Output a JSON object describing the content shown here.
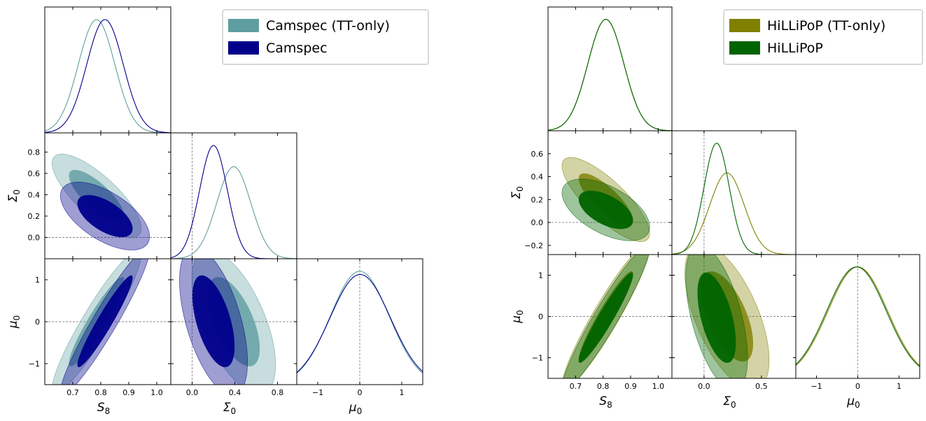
{
  "chart_data": [
    {
      "type": "contour",
      "params": [
        "S_8",
        "Σ_0",
        "μ_0"
      ],
      "axis_labels": {
        "S_8": "S",
        "S_8_sub": "8",
        "Sigma_0": "Σ",
        "Sigma_0_sub": "0",
        "mu_0": "μ",
        "mu_0_sub": "0"
      },
      "ranges": {
        "S_8": [
          0.6,
          1.05
        ],
        "Sigma_0": [
          -0.2,
          0.98
        ],
        "mu_0": [
          -1.5,
          1.5
        ]
      },
      "ticks": {
        "S_8": [
          "0.7",
          "0.8",
          "0.9",
          "1.0"
        ],
        "Sigma_0_x": [
          "0.0",
          "0.4",
          "0.8"
        ],
        "Sigma_0_y": [
          "0.0",
          "0.2",
          "0.4",
          "0.6",
          "0.8"
        ],
        "mu_0_x": [
          "−1",
          "0",
          "1"
        ],
        "mu_0_y": [
          "−1",
          "0",
          "1"
        ]
      },
      "reference_lines": {
        "Sigma_0": 0,
        "mu_0": 0
      },
      "legend": {
        "position": "top-right",
        "entries": [
          "Camspec (TT-only)",
          "Camspec"
        ]
      },
      "series": [
        {
          "name": "Camspec (TT-only)",
          "color": "#5f9ea0",
          "S_8": {
            "mean": 0.785,
            "sigma": 0.065
          },
          "Sigma_0": {
            "mean": 0.39,
            "sigma": 0.16
          },
          "mu_0": {
            "mean": 0.0,
            "sigma": 0.7
          },
          "corr": {
            "S8_Sigma0": -0.78,
            "S8_mu0": 0.93,
            "Sigma0_mu0": -0.6
          }
        },
        {
          "name": "Camspec",
          "color": "#00008b",
          "S_8": {
            "mean": 0.815,
            "sigma": 0.065
          },
          "Sigma_0": {
            "mean": 0.2,
            "sigma": 0.13
          },
          "mu_0": {
            "mean": 0.01,
            "sigma": 0.72
          },
          "corr": {
            "S8_Sigma0": -0.6,
            "S8_mu0": 0.95,
            "Sigma0_mu0": -0.55
          }
        }
      ]
    },
    {
      "type": "contour",
      "params": [
        "S_8",
        "Σ_0",
        "μ_0"
      ],
      "axis_labels": {
        "S_8": "S",
        "S_8_sub": "8",
        "Sigma_0": "Σ",
        "Sigma_0_sub": "0",
        "mu_0": "μ",
        "mu_0_sub": "0"
      },
      "ranges": {
        "S_8": [
          0.6,
          1.05
        ],
        "Sigma_0": [
          -0.28,
          0.8
        ],
        "mu_0": [
          -1.5,
          1.5
        ]
      },
      "ticks": {
        "S_8": [
          "0.7",
          "0.8",
          "0.9",
          "1.0"
        ],
        "Sigma_0_x": [
          "0.0",
          "0.5"
        ],
        "Sigma_0_y": [
          "−0.2",
          "0.0",
          "0.2",
          "0.4",
          "0.6"
        ],
        "mu_0_x": [
          "−1",
          "0",
          "1"
        ],
        "mu_0_y": [
          "−1",
          "0",
          "1"
        ]
      },
      "reference_lines": {
        "Sigma_0": 0,
        "mu_0": 0
      },
      "legend": {
        "position": "top-right",
        "entries": [
          "HiLLiPoP (TT-only)",
          "HiLLiPoP"
        ]
      },
      "series": [
        {
          "name": "HiLLiPoP (TT-only)",
          "color": "#808000",
          "S_8": {
            "mean": 0.81,
            "sigma": 0.065
          },
          "Sigma_0": {
            "mean": 0.2,
            "sigma": 0.15
          },
          "mu_0": {
            "mean": 0.0,
            "sigma": 0.72
          },
          "corr": {
            "S8_Sigma0": -0.8,
            "S8_mu0": 0.94,
            "Sigma0_mu0": -0.6
          }
        },
        {
          "name": "HiLLiPoP",
          "color": "#006400",
          "S_8": {
            "mean": 0.81,
            "sigma": 0.065
          },
          "Sigma_0": {
            "mean": 0.11,
            "sigma": 0.11
          },
          "mu_0": {
            "mean": -0.03,
            "sigma": 0.72
          },
          "corr": {
            "S8_Sigma0": -0.55,
            "S8_mu0": 0.95,
            "Sigma0_mu0": -0.55
          }
        }
      ]
    }
  ]
}
